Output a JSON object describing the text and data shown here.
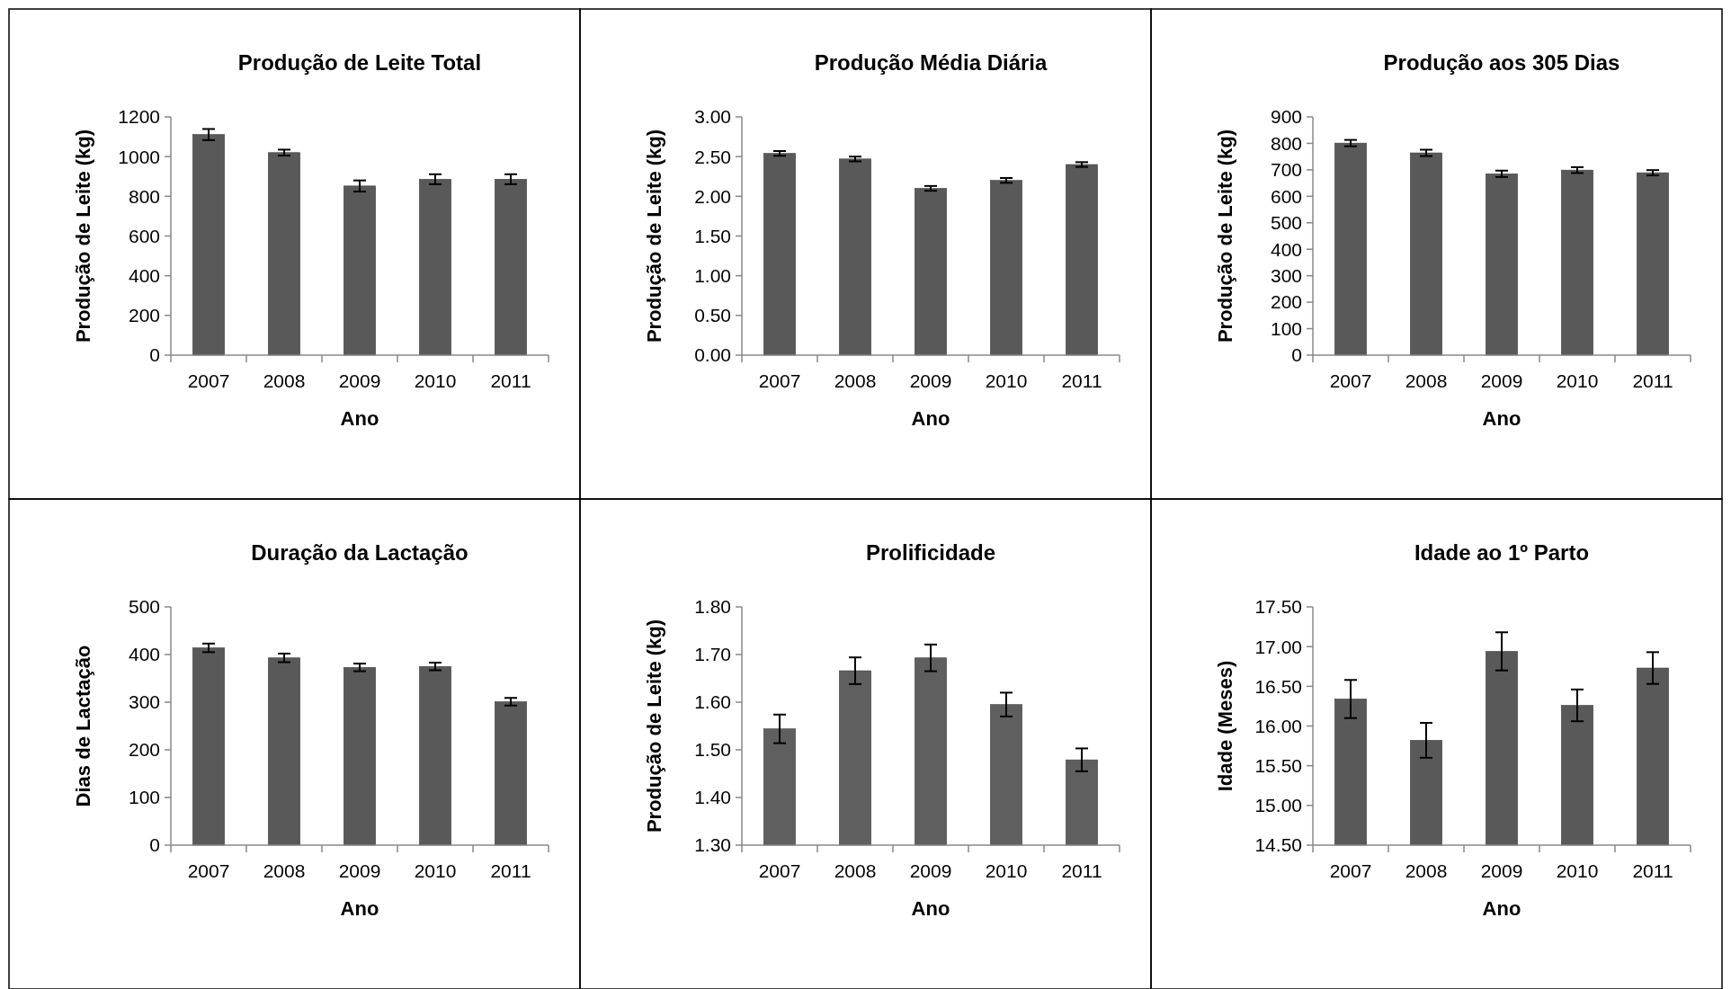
{
  "chart_data": [
    {
      "type": "bar",
      "title": "Produção de Leite Total",
      "xlabel": "Ano",
      "ylabel": "Produção de Leite (kg)",
      "categories": [
        "2007",
        "2008",
        "2009",
        "2010",
        "2011"
      ],
      "color": "#595959",
      "values": [
        1111,
        1020,
        852,
        886,
        886
      ],
      "errors": [
        28,
        15,
        28,
        25,
        25
      ],
      "ylim": [
        0,
        1200
      ],
      "yticks": [
        0,
        200,
        400,
        600,
        800,
        1000,
        1200
      ]
    },
    {
      "type": "bar",
      "title": "Produção Média Diária",
      "xlabel": "Ano",
      "ylabel": "Produção de Leite (kg)",
      "categories": [
        "2007",
        "2008",
        "2009",
        "2010",
        "2011"
      ],
      "color": "#595959",
      "values": [
        2.54,
        2.47,
        2.1,
        2.2,
        2.4
      ],
      "errors": [
        0.03,
        0.03,
        0.03,
        0.03,
        0.03
      ],
      "ylim": [
        0,
        3
      ],
      "yticks": [
        {
          "value": 0,
          "label": "0.00"
        },
        {
          "value": 0.5,
          "label": "0.50"
        },
        {
          "value": 1,
          "label": "1.00"
        },
        {
          "value": 1.5,
          "label": "1.50"
        },
        {
          "value": 2,
          "label": "2.00"
        },
        {
          "value": 2.5,
          "label": "2.50"
        },
        {
          "value": 3,
          "label": "3.00"
        }
      ]
    },
    {
      "type": "bar",
      "title": "Produção aos 305 Dias",
      "xlabel": "Ano",
      "ylabel": "Produção de Leite (kg)",
      "categories": [
        "2007",
        "2008",
        "2009",
        "2010",
        "2011"
      ],
      "color": "#595959",
      "values": [
        801,
        764,
        685,
        699,
        689
      ],
      "errors": [
        12,
        12,
        12,
        11,
        10
      ],
      "ylim": [
        0,
        900
      ],
      "yticks": [
        0,
        100,
        200,
        300,
        400,
        500,
        600,
        700,
        800,
        900
      ]
    },
    {
      "type": "bar",
      "title": "Duração da Lactação",
      "xlabel": "Ano",
      "ylabel": "Dias de Lactação",
      "categories": [
        "2007",
        "2008",
        "2009",
        "2010",
        "2011"
      ],
      "color": "#595959",
      "values": [
        414,
        393,
        373,
        375,
        301
      ],
      "errors": [
        9,
        9,
        8,
        8,
        8
      ],
      "ylim": [
        0,
        500
      ],
      "yticks": [
        0,
        100,
        200,
        300,
        400,
        500
      ]
    },
    {
      "type": "bar",
      "title": "Prolificidade",
      "xlabel": "Ano",
      "ylabel": "Produção de Leite (kg)",
      "categories": [
        "2007",
        "2008",
        "2009",
        "2010",
        "2011"
      ],
      "color": "#5f5f5f",
      "values": [
        1.544,
        1.666,
        1.693,
        1.595,
        1.479
      ],
      "errors": [
        0.03,
        0.028,
        0.028,
        0.025,
        0.024
      ],
      "ylim": [
        1.3,
        1.8
      ],
      "yticks": [
        {
          "value": 1.3,
          "label": "1.30"
        },
        {
          "value": 1.4,
          "label": "1.40"
        },
        {
          "value": 1.5,
          "label": "1.50"
        },
        {
          "value": 1.6,
          "label": "1.60"
        },
        {
          "value": 1.7,
          "label": "1.70"
        },
        {
          "value": 1.8,
          "label": "1.80"
        }
      ]
    },
    {
      "type": "bar",
      "title": "Idade ao 1º Parto",
      "xlabel": "Ano",
      "ylabel": "Idade (Meses)",
      "categories": [
        "2007",
        "2008",
        "2009",
        "2010",
        "2011"
      ],
      "color": "#595959",
      "values": [
        16.34,
        15.82,
        16.94,
        16.26,
        16.73
      ],
      "errors": [
        0.24,
        0.22,
        0.24,
        0.2,
        0.2
      ],
      "ylim": [
        14.5,
        17.5
      ],
      "yticks": [
        {
          "value": 14.5,
          "label": "14.50"
        },
        {
          "value": 15,
          "label": "15.00"
        },
        {
          "value": 15.5,
          "label": "15.50"
        },
        {
          "value": 16,
          "label": "16.00"
        },
        {
          "value": 16.5,
          "label": "16.50"
        },
        {
          "value": 17,
          "label": "17.00"
        },
        {
          "value": 17.5,
          "label": "17.50"
        }
      ]
    }
  ]
}
